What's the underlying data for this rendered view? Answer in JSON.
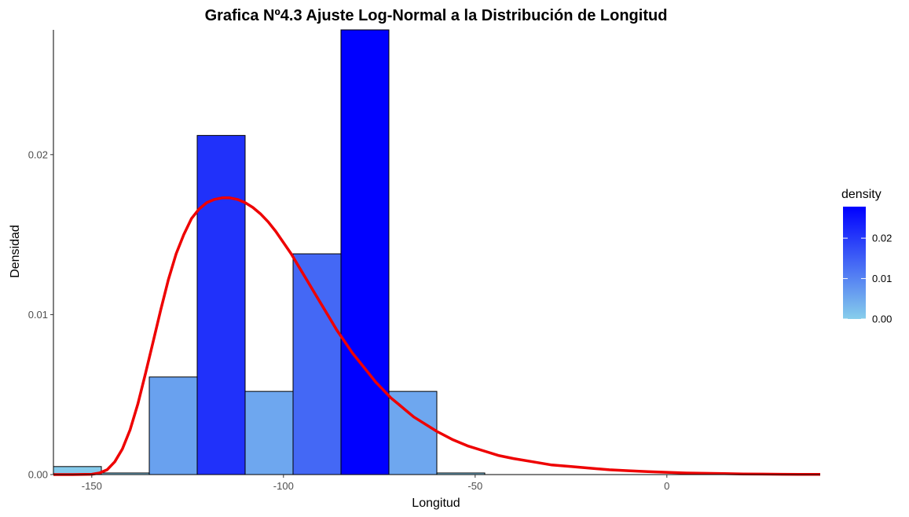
{
  "chart_data": {
    "type": "bar",
    "title": "Grafica Nº4.3 Ajuste Log-Normal a la Distribución de Longitud",
    "xlabel": "Longitud",
    "ylabel": "Densidad",
    "xlim": [
      -160,
      40
    ],
    "ylim": [
      0,
      0.0278
    ],
    "x_ticks": [
      -150,
      -100,
      -50,
      0
    ],
    "x_tick_labels": [
      "-150",
      "-100",
      "-50",
      "0"
    ],
    "y_ticks": [
      0,
      0.01,
      0.02
    ],
    "y_tick_labels": [
      "0.00",
      "0.01",
      "0.02"
    ],
    "grid": false,
    "histogram": {
      "bins": [
        {
          "x0": -172.5,
          "x1": -147.5,
          "density": 0.0005
        },
        {
          "x0": -147.5,
          "x1": -135,
          "density": 0.0001
        },
        {
          "x0": -135,
          "x1": -122.5,
          "density": 0.0061
        },
        {
          "x0": -122.5,
          "x1": -110,
          "density": 0.0212
        },
        {
          "x0": -110,
          "x1": -97.5,
          "density": 0.0052
        },
        {
          "x0": -97.5,
          "x1": -85,
          "density": 0.0138
        },
        {
          "x0": -85,
          "x1": -72.5,
          "density": 0.0278
        },
        {
          "x0": -72.5,
          "x1": -60,
          "density": 0.0052
        },
        {
          "x0": -60,
          "x1": -47.5,
          "density": 0.0001
        }
      ]
    },
    "fitted_curve": {
      "color": "#ee0000",
      "points": [
        [
          -160,
          0
        ],
        [
          -155,
          0
        ],
        [
          -150,
          2e-05
        ],
        [
          -148,
          0.0001
        ],
        [
          -146,
          0.0003
        ],
        [
          -144,
          0.0008
        ],
        [
          -142,
          0.0016
        ],
        [
          -140,
          0.0028
        ],
        [
          -138,
          0.0044
        ],
        [
          -136,
          0.0063
        ],
        [
          -134,
          0.0083
        ],
        [
          -132,
          0.0103
        ],
        [
          -130,
          0.0122
        ],
        [
          -128,
          0.0138
        ],
        [
          -126,
          0.015
        ],
        [
          -124,
          0.016
        ],
        [
          -122,
          0.0166
        ],
        [
          -120,
          0.017
        ],
        [
          -118,
          0.0172
        ],
        [
          -116,
          0.0173
        ],
        [
          -114,
          0.0173
        ],
        [
          -112,
          0.0172
        ],
        [
          -110,
          0.017
        ],
        [
          -108,
          0.0167
        ],
        [
          -106,
          0.0163
        ],
        [
          -104,
          0.0158
        ],
        [
          -102,
          0.0152
        ],
        [
          -100,
          0.0145
        ],
        [
          -98,
          0.0138
        ],
        [
          -96,
          0.013
        ],
        [
          -94,
          0.0122
        ],
        [
          -92,
          0.0114
        ],
        [
          -90,
          0.0106
        ],
        [
          -88,
          0.0098
        ],
        [
          -86,
          0.009
        ],
        [
          -84,
          0.0083
        ],
        [
          -82,
          0.0076
        ],
        [
          -80,
          0.007
        ],
        [
          -78,
          0.0064
        ],
        [
          -76,
          0.0058
        ],
        [
          -74,
          0.0053
        ],
        [
          -72,
          0.0048
        ],
        [
          -70,
          0.0044
        ],
        [
          -68,
          0.004
        ],
        [
          -66,
          0.0036
        ],
        [
          -64,
          0.0033
        ],
        [
          -60,
          0.0027
        ],
        [
          -56,
          0.0022
        ],
        [
          -52,
          0.0018
        ],
        [
          -48,
          0.0015
        ],
        [
          -44,
          0.0012
        ],
        [
          -40,
          0.001
        ],
        [
          -35,
          0.0008
        ],
        [
          -30,
          0.0006
        ],
        [
          -25,
          0.0005
        ],
        [
          -20,
          0.0004
        ],
        [
          -15,
          0.0003
        ],
        [
          -10,
          0.00024
        ],
        [
          -5,
          0.00018
        ],
        [
          0,
          0.00014
        ],
        [
          5,
          0.0001
        ],
        [
          10,
          8e-05
        ],
        [
          15,
          6e-05
        ],
        [
          20,
          4e-05
        ],
        [
          25,
          3e-05
        ],
        [
          30,
          2e-05
        ],
        [
          35,
          1e-05
        ],
        [
          40,
          1e-05
        ]
      ]
    },
    "legend": {
      "title": "density",
      "position": "right",
      "low_color": "#87ceeb",
      "high_color": "#0000ff",
      "range": [
        0,
        0.0278
      ],
      "ticks": [
        0,
        0.01,
        0.02
      ],
      "tick_labels": [
        "0.00",
        "0.01",
        "0.02"
      ]
    }
  }
}
